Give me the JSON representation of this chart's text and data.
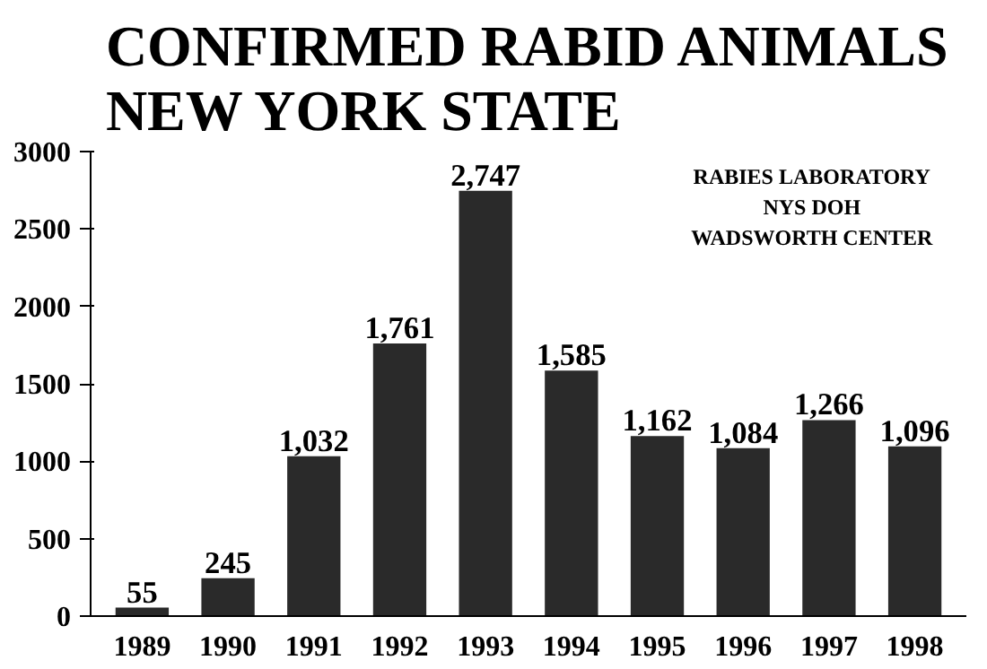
{
  "chart_data": {
    "type": "bar",
    "title": "CONFIRMED RABID ANIMALS\nNEW YORK STATE",
    "categories": [
      "1989",
      "1990",
      "1991",
      "1992",
      "1993",
      "1994",
      "1995",
      "1996",
      "1997",
      "1998"
    ],
    "values": [
      55,
      245,
      1032,
      1761,
      2747,
      1585,
      1162,
      1084,
      1266,
      1096
    ],
    "value_labels": [
      "55",
      "245",
      "1,032",
      "1,761",
      "2,747",
      "1,585",
      "1,162",
      "1,084",
      "1,266",
      "1,096"
    ],
    "color": "#2a2a2a",
    "ylim": [
      0,
      3000
    ],
    "yticks": [
      0,
      500,
      1000,
      1500,
      2000,
      2500,
      3000
    ],
    "grid": false,
    "annotations": [
      "RABIES LABORATORY",
      "NYS DOH",
      "WADSWORTH CENTER"
    ]
  }
}
